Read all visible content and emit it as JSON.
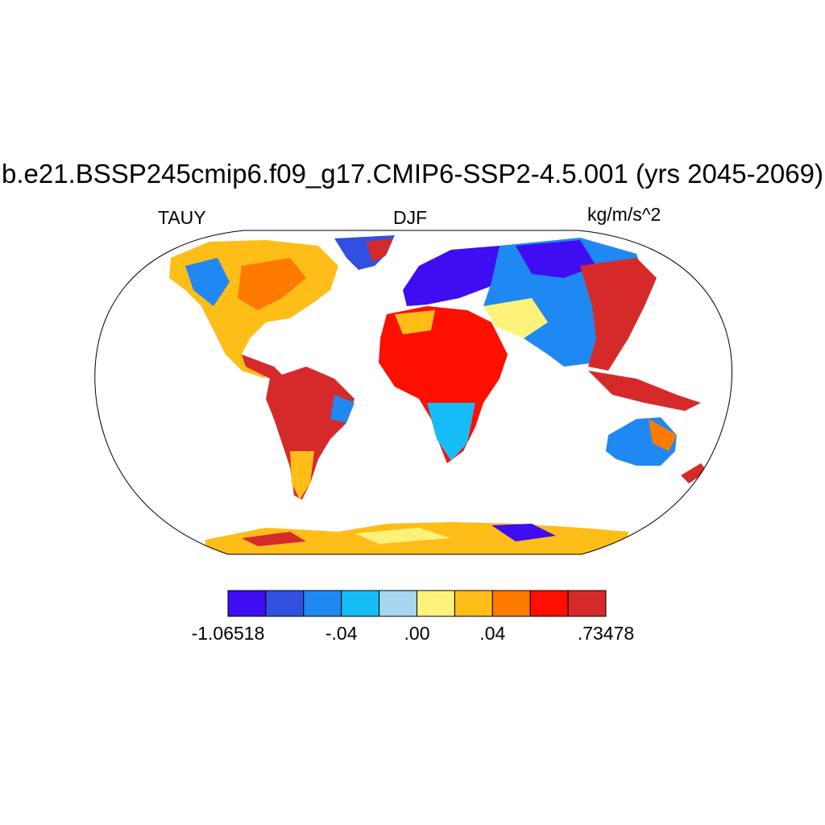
{
  "title": "b.e21.BSSP245cmip6.f09_g17.CMIP6-SSP2-4.5.001 (yrs 2045-2069)",
  "left_label": "TAUY",
  "center_label": "DJF",
  "units": "kg/m/s^2",
  "colorbar": {
    "colors": [
      "#3e0df2",
      "#3050e0",
      "#2088f2",
      "#16bcf5",
      "#a6d6f0",
      "#fff27a",
      "#ffbd17",
      "#ff7a00",
      "#ff0f00",
      "#d62a2a"
    ],
    "tick_labels": [
      {
        "text": "-1.06518",
        "index": 0
      },
      {
        "text": "-.04",
        "index": 3
      },
      {
        "text": ".00",
        "index": 5
      },
      {
        "text": ".04",
        "index": 7
      },
      {
        "text": ".73478",
        "index": 10
      }
    ]
  },
  "map_regions": [
    {
      "name": "north-america",
      "color_index": 6
    },
    {
      "name": "greenland",
      "color_index": 1
    },
    {
      "name": "south-america",
      "color_index": 9
    },
    {
      "name": "africa",
      "color_index": 8
    },
    {
      "name": "europe",
      "color_index": 0
    },
    {
      "name": "asia",
      "color_index": 2
    },
    {
      "name": "east-asia",
      "color_index": 9
    },
    {
      "name": "australia",
      "color_index": 2
    },
    {
      "name": "antarctica",
      "color_index": 6
    }
  ]
}
